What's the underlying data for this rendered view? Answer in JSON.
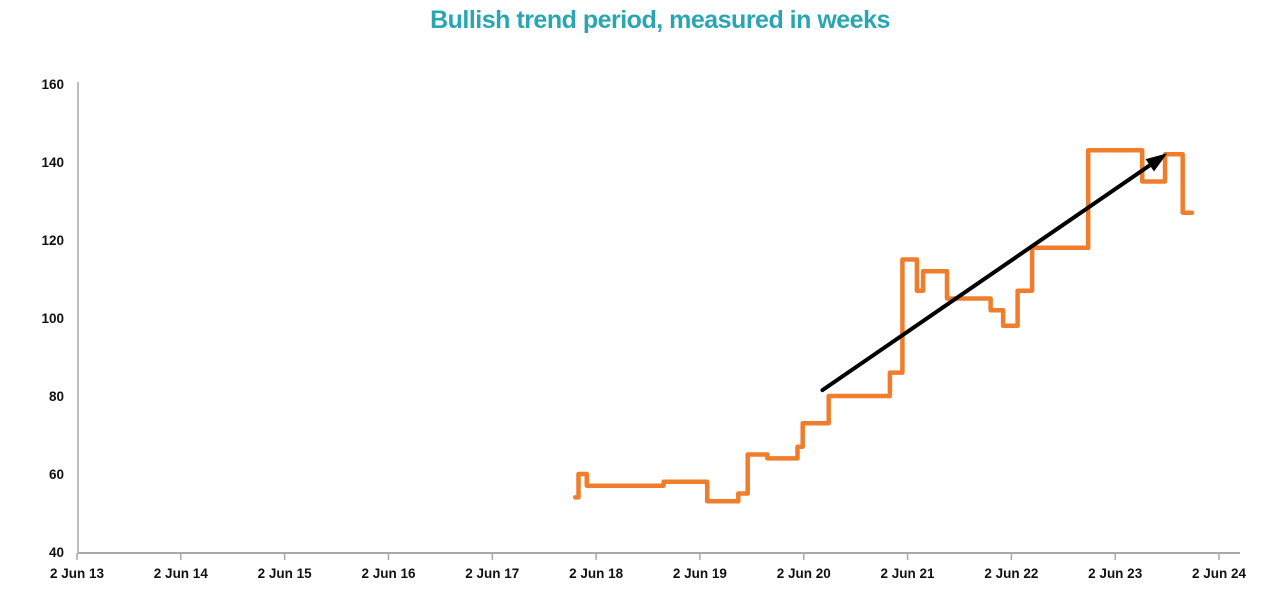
{
  "title": "Bullish trend period, measured in weeks",
  "colors": {
    "title": "#2aa6b2",
    "line": "#f07d2b",
    "arrow": "#000000",
    "axis_line": "#a9a9a9",
    "tick_mark": "#a9a9a9",
    "tick_label": "#111111"
  },
  "chart_data": {
    "type": "line",
    "subtype": "step",
    "title": "Bullish trend period, measured in weeks",
    "xlabel": "",
    "ylabel": "",
    "x_unit": "years after 2 Jun 2013",
    "x_tick_labels": [
      "2 Jun 13",
      "2 Jun 14",
      "2 Jun 15",
      "2 Jun 16",
      "2 Jun 17",
      "2 Jun 18",
      "2 Jun 19",
      "2 Jun 20",
      "2 Jun 21",
      "2 Jun 22",
      "2 Jun 23",
      "2 Jun 24"
    ],
    "y_ticks": [
      40,
      60,
      80,
      100,
      120,
      140,
      160
    ],
    "ylim": [
      40,
      160
    ],
    "xlim_years": [
      0,
      11.2
    ],
    "grid": false,
    "legend": "none",
    "series": [
      {
        "name": "bullish-trend-length-weeks",
        "color": "#f07d2b",
        "line_width": 4.5,
        "steps": [
          {
            "x": 4.8,
            "v": 54
          },
          {
            "x": 4.83,
            "v": 60
          },
          {
            "x": 4.91,
            "v": 57
          },
          {
            "x": 5.65,
            "v": 58
          },
          {
            "x": 6.07,
            "v": 53
          },
          {
            "x": 6.37,
            "v": 55
          },
          {
            "x": 6.46,
            "v": 65
          },
          {
            "x": 6.65,
            "v": 64
          },
          {
            "x": 6.94,
            "v": 67
          },
          {
            "x": 6.99,
            "v": 73
          },
          {
            "x": 7.24,
            "v": 80
          },
          {
            "x": 7.83,
            "v": 86
          },
          {
            "x": 7.95,
            "v": 115
          },
          {
            "x": 8.09,
            "v": 107
          },
          {
            "x": 8.15,
            "v": 112
          },
          {
            "x": 8.38,
            "v": 105
          },
          {
            "x": 8.8,
            "v": 102
          },
          {
            "x": 8.92,
            "v": 98
          },
          {
            "x": 9.06,
            "v": 107
          },
          {
            "x": 9.2,
            "v": 118
          },
          {
            "x": 9.74,
            "v": 143
          },
          {
            "x": 10.26,
            "v": 135
          },
          {
            "x": 10.48,
            "v": 142
          },
          {
            "x": 10.65,
            "v": 127
          }
        ],
        "end_x": 10.74
      }
    ],
    "annotation_arrow": {
      "from": {
        "x": 7.18,
        "v": 81.5
      },
      "to": {
        "x": 10.5,
        "v": 142.2
      },
      "color": "#000000",
      "line_width": 4
    }
  }
}
